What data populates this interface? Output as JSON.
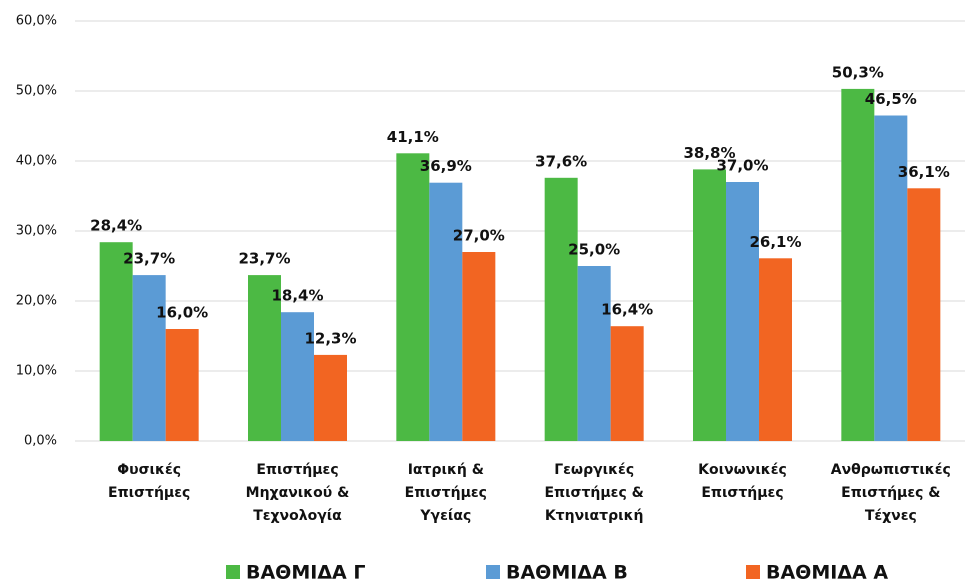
{
  "chart_data": {
    "type": "bar",
    "categories": [
      [
        "Φυσικές",
        "Επιστήμες"
      ],
      [
        "Επιστήμες",
        "Μηχανικού &",
        "Τεχνολογία"
      ],
      [
        "Ιατρική &",
        "Επιστήμες",
        "Υγείας"
      ],
      [
        "Γεωργικές",
        "Επιστήμες &",
        "Κτηνιατρική"
      ],
      [
        "Κοινωνικές",
        "Επιστήμες"
      ],
      [
        "Ανθρωπιστικές",
        "Επιστήμες &",
        "Τέχνες"
      ]
    ],
    "series": [
      {
        "name": "ΒΑΘΜΙΔΑ Γ",
        "color": "#4cb944",
        "values": [
          28.4,
          23.7,
          41.1,
          37.6,
          38.8,
          50.3
        ],
        "value_labels": [
          "28,4%",
          "23,7%",
          "41,1%",
          "37,6%",
          "38,8%",
          "50,3%"
        ]
      },
      {
        "name": "ΒΑΘΜΙΔΑ Β",
        "color": "#5b9bd5",
        "values": [
          23.7,
          18.4,
          36.9,
          25.0,
          37.0,
          46.5
        ],
        "value_labels": [
          "23,7%",
          "18,4%",
          "36,9%",
          "25,0%",
          "37,0%",
          "46,5%"
        ]
      },
      {
        "name": "ΒΑΘΜΙΔΑ Α",
        "color": "#f26522",
        "values": [
          16.0,
          12.3,
          27.0,
          16.4,
          26.1,
          36.1
        ],
        "value_labels": [
          "16,0%",
          "12,3%",
          "27,0%",
          "16,4%",
          "26,1%",
          "36,1%"
        ]
      }
    ],
    "ylim": [
      0,
      60
    ],
    "yticks": [
      {
        "value": 0,
        "label": "0,0%"
      },
      {
        "value": 10,
        "label": "10,0%"
      },
      {
        "value": 20,
        "label": "20,0%"
      },
      {
        "value": 30,
        "label": "30,0%"
      },
      {
        "value": 40,
        "label": "40,0%"
      },
      {
        "value": 50,
        "label": "50,0%"
      },
      {
        "value": 60,
        "label": "60,0%"
      }
    ],
    "grid": true,
    "legend": "bottom"
  }
}
